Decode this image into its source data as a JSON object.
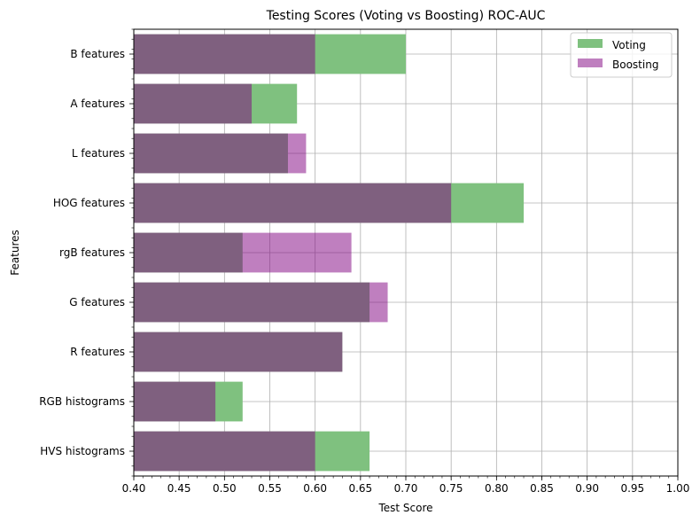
{
  "chart_data": {
    "type": "bar",
    "orientation": "horizontal",
    "title": "Testing Scores (Voting vs Boosting) ROC-AUC",
    "xlabel": "Test Score",
    "ylabel": "Features",
    "xlim": [
      0.4,
      1.0
    ],
    "xticks": [
      "0.40",
      "0.45",
      "0.50",
      "0.55",
      "0.60",
      "0.65",
      "0.70",
      "0.75",
      "0.80",
      "0.85",
      "0.90",
      "0.95",
      "1.00"
    ],
    "grid": true,
    "legend_position": "top-right",
    "categories": [
      "B features",
      "A features",
      "L features",
      "HOG features",
      "rgB features",
      "G features",
      "R features",
      "RGB histograms",
      "HVS histograms"
    ],
    "series": [
      {
        "name": "Voting",
        "color": "#7fc17f",
        "values": [
          0.7,
          0.58,
          0.57,
          0.83,
          0.52,
          0.66,
          0.63,
          0.52,
          0.66
        ]
      },
      {
        "name": "Boosting",
        "color": "#bf7fbf",
        "values": [
          0.6,
          0.53,
          0.59,
          0.75,
          0.64,
          0.68,
          0.63,
          0.49,
          0.6
        ]
      }
    ],
    "overlap_color": "#7f5f7f"
  }
}
